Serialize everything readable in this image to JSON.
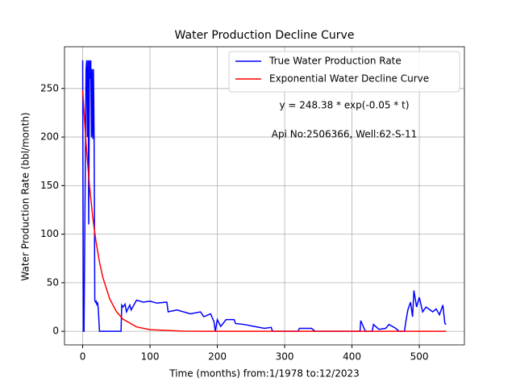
{
  "chart_data": {
    "type": "line",
    "title": "Water Production Decline Curve",
    "xlabel": "Time (months) from:1/1978 to:12/2023",
    "ylabel": "Water Production Rate (bbl/month)",
    "annotations": [
      "y = 248.38 * exp(-0.05 * t)",
      "Api No:2506366, Well:62-S-11"
    ],
    "xlim": [
      -27,
      567
    ],
    "ylim": [
      -14,
      293
    ],
    "xticks": [
      0,
      100,
      200,
      300,
      400,
      500
    ],
    "yticks": [
      0,
      50,
      100,
      150,
      200,
      250
    ],
    "grid": true,
    "legend": "upper right",
    "series": [
      {
        "name": "True Water Production Rate",
        "color": "#0000ff",
        "x": [
          0,
          1,
          2,
          5,
          6,
          7,
          8,
          9,
          10,
          11,
          12,
          13,
          14,
          15,
          16,
          17,
          18,
          19,
          20,
          21,
          22,
          23,
          25,
          57,
          58,
          60,
          63,
          65,
          70,
          72,
          80,
          90,
          100,
          110,
          125,
          127,
          140,
          160,
          175,
          180,
          190,
          195,
          197,
          200,
          205,
          213,
          225,
          227,
          240,
          255,
          270,
          280,
          282,
          320,
          322,
          340,
          345,
          412,
          413,
          418,
          420,
          430,
          432,
          440,
          450,
          455,
          465,
          470,
          478,
          480,
          483,
          487,
          490,
          492,
          496,
          500,
          505,
          510,
          520,
          525,
          530,
          535,
          538,
          540
        ],
        "values": [
          279,
          0,
          0,
          270,
          279,
          200,
          279,
          110,
          279,
          260,
          279,
          200,
          270,
          198,
          270,
          200,
          32,
          30,
          31,
          28,
          30,
          25,
          0,
          0,
          27,
          25,
          28,
          20,
          27,
          22,
          32,
          30,
          31,
          29,
          30,
          20,
          22,
          18,
          20,
          15,
          18,
          10,
          0,
          12,
          5,
          12,
          12,
          8,
          7,
          5,
          3,
          4,
          0,
          0,
          3,
          3,
          0,
          0,
          11,
          3,
          0,
          0,
          7,
          2,
          3,
          7,
          3,
          0,
          0,
          10,
          22,
          30,
          15,
          42,
          25,
          35,
          20,
          25,
          20,
          23,
          17,
          27,
          8,
          7
        ]
      },
      {
        "name": "Exponential Water Decline Curve",
        "color": "#ff0000",
        "x": [
          0,
          5,
          10,
          15,
          20,
          25,
          30,
          40,
          50,
          60,
          80,
          100,
          150,
          200,
          540
        ],
        "values": [
          248.38,
          193.4,
          150.6,
          117.3,
          91.4,
          71.2,
          55.4,
          33.6,
          20.4,
          12.4,
          4.5,
          1.7,
          0.1,
          0,
          0
        ]
      }
    ]
  }
}
